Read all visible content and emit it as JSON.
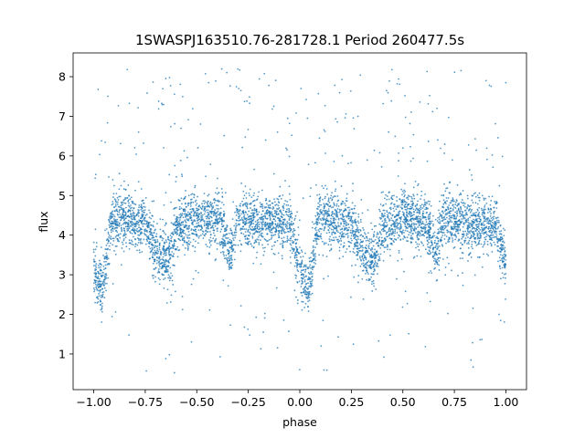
{
  "chart_data": {
    "type": "scatter",
    "title": "1SWASPJ163510.76-281728.1 Period 260477.5s",
    "xlabel": "phase",
    "ylabel": "flux",
    "xlim": [
      -1.1,
      1.1
    ],
    "ylim": [
      0.1,
      8.6
    ],
    "xticks": [
      -1.0,
      -0.75,
      -0.5,
      -0.25,
      0.0,
      0.25,
      0.5,
      0.75,
      1.0
    ],
    "xtick_labels": [
      "−1.00",
      "−0.75",
      "−0.50",
      "−0.25",
      "0.00",
      "0.25",
      "0.50",
      "0.75",
      "1.00"
    ],
    "yticks": [
      1,
      2,
      3,
      4,
      5,
      6,
      7,
      8
    ],
    "ytick_labels": [
      "1",
      "2",
      "3",
      "4",
      "5",
      "6",
      "7",
      "8"
    ],
    "grid": false,
    "series": [
      {
        "color": "#1f77b4",
        "marker_size": 0.9,
        "points_per_phase_unit": 2600,
        "period_in_phase": 1.0,
        "light_curve": {
          "x": [
            0.0,
            0.02,
            0.05,
            0.08,
            0.1,
            0.15,
            0.2,
            0.25,
            0.28,
            0.32,
            0.36,
            0.4,
            0.45,
            0.5,
            0.55,
            0.6,
            0.63,
            0.66,
            0.7,
            0.75,
            0.8,
            0.85,
            0.9,
            0.95,
            0.98,
            1.0
          ],
          "y": [
            3.2,
            2.8,
            2.7,
            4.2,
            4.5,
            4.4,
            4.3,
            4.3,
            3.8,
            3.5,
            3.4,
            4.2,
            4.3,
            4.4,
            4.4,
            4.4,
            4.1,
            3.5,
            4.5,
            4.4,
            4.3,
            4.3,
            4.3,
            4.3,
            3.6,
            3.2
          ]
        },
        "scatter_sigma": 0.35,
        "outlier_fraction": 0.07,
        "outlier_range": [
          0.5,
          8.2
        ]
      }
    ]
  }
}
